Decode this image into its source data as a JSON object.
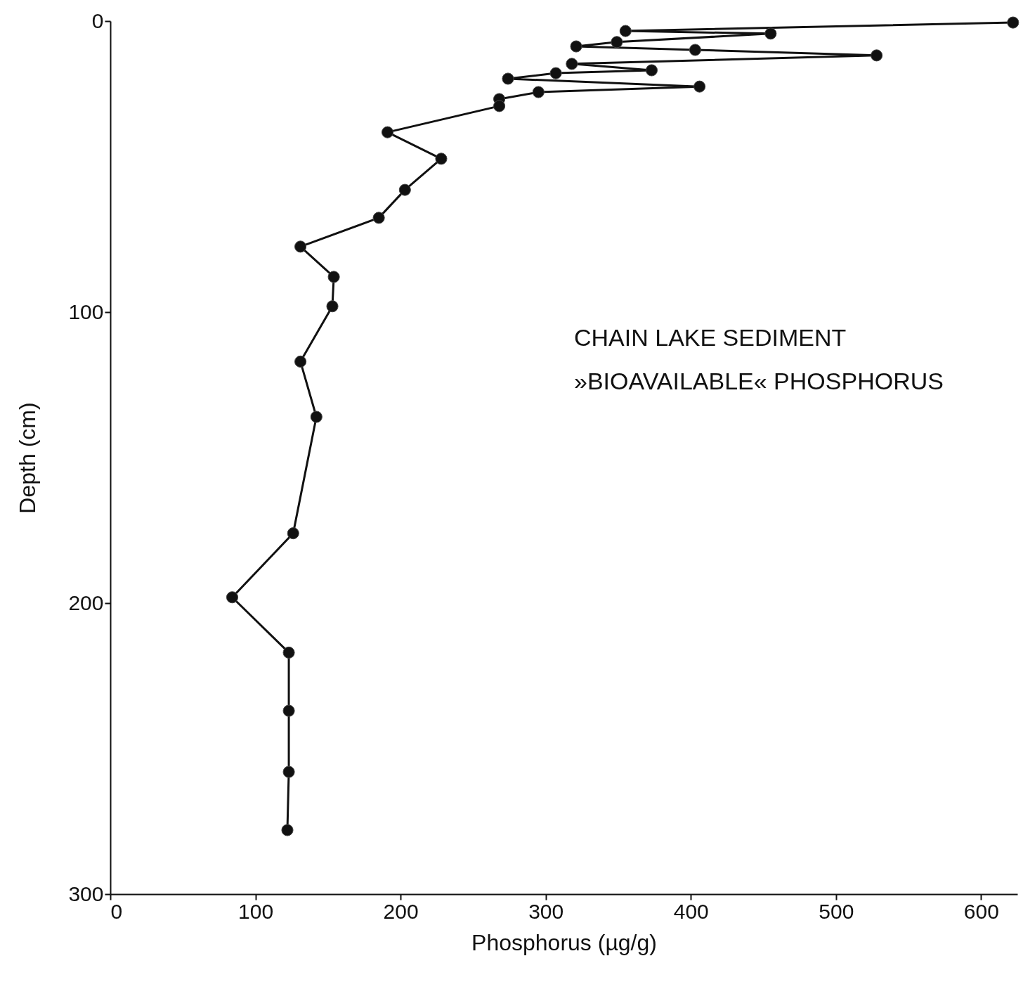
{
  "chart_data": {
    "type": "line",
    "xlabel": "Phosphorus (µg/g)",
    "ylabel": "Depth (cm)",
    "annotations": [
      "CHAIN LAKE SEDIMENT",
      "»BIOAVAILABLE« PHOSPHORUS"
    ],
    "series": [
      {
        "color": "#111111",
        "x": [
          622,
          355,
          455,
          349,
          321,
          403,
          528,
          318,
          373,
          307,
          274,
          406,
          295,
          268,
          268,
          191,
          228,
          203,
          185,
          131,
          154,
          153,
          131,
          142,
          126,
          84,
          123,
          123,
          123,
          122
        ],
        "values": [
          0.5,
          3.4,
          4.3,
          7.2,
          8.7,
          9.9,
          11.8,
          14.7,
          16.9,
          17.9,
          19.8,
          22.5,
          24.4,
          26.8,
          29.2,
          38.2,
          47.3,
          58,
          67.6,
          77.5,
          87.9,
          98,
          117,
          136,
          176,
          198,
          217,
          237,
          258,
          278
        ]
      }
    ],
    "xlim": [
      0,
      625
    ],
    "ylim": [
      300,
      0
    ],
    "xticks": [
      0,
      100,
      200,
      300,
      400,
      500,
      600
    ],
    "yticks": [
      0,
      100,
      200,
      300
    ],
    "grid": false,
    "legend": false,
    "marker": "circle",
    "line_style": "solid"
  }
}
